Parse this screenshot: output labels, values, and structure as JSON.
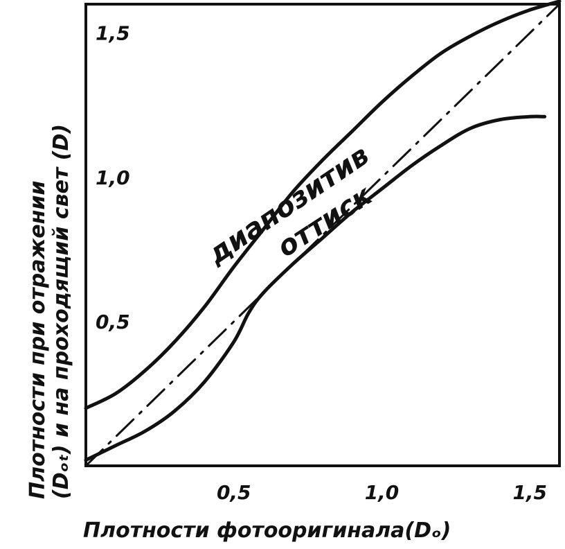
{
  "chart_data": {
    "type": "line",
    "xlabel": "Плотности фотооригинала(Dₒ)",
    "ylabel": [
      "Плотности при отражении",
      "(Dₒₜ) и на проходящий свет (D)"
    ],
    "xlim": [
      0,
      1.6
    ],
    "ylim": [
      0,
      1.6
    ],
    "x_ticks": [
      {
        "value": 0.5,
        "label": "0,5"
      },
      {
        "value": 1.0,
        "label": "1,0"
      },
      {
        "value": 1.5,
        "label": "1,5"
      }
    ],
    "y_ticks": [
      {
        "value": 0.5,
        "label": "0,5"
      },
      {
        "value": 1.0,
        "label": "1,0"
      },
      {
        "value": 1.5,
        "label": "1,5"
      }
    ],
    "grid": false,
    "series": [
      {
        "name": "диапозитив",
        "style": "solid",
        "x": [
          0,
          0.1,
          0.2,
          0.3,
          0.4,
          0.5,
          0.6,
          0.7,
          0.8,
          0.9,
          1.0,
          1.1,
          1.2,
          1.3,
          1.4,
          1.5,
          1.6
        ],
        "y": [
          0.2,
          0.25,
          0.33,
          0.43,
          0.55,
          0.69,
          0.82,
          0.95,
          1.06,
          1.16,
          1.26,
          1.35,
          1.43,
          1.49,
          1.54,
          1.58,
          1.61
        ]
      },
      {
        "name": "оттиск",
        "style": "solid",
        "x": [
          0,
          0.1,
          0.2,
          0.3,
          0.4,
          0.5,
          0.55,
          0.6,
          0.7,
          0.8,
          0.9,
          1.0,
          1.1,
          1.2,
          1.3,
          1.4,
          1.5,
          1.55
        ],
        "y": [
          0.02,
          0.07,
          0.12,
          0.19,
          0.29,
          0.43,
          0.53,
          0.6,
          0.7,
          0.79,
          0.88,
          0.96,
          1.04,
          1.11,
          1.17,
          1.2,
          1.21,
          1.21
        ]
      },
      {
        "name": "",
        "style": "dash-dot",
        "x": [
          0,
          1.6
        ],
        "y": [
          0,
          1.6
        ]
      }
    ]
  }
}
